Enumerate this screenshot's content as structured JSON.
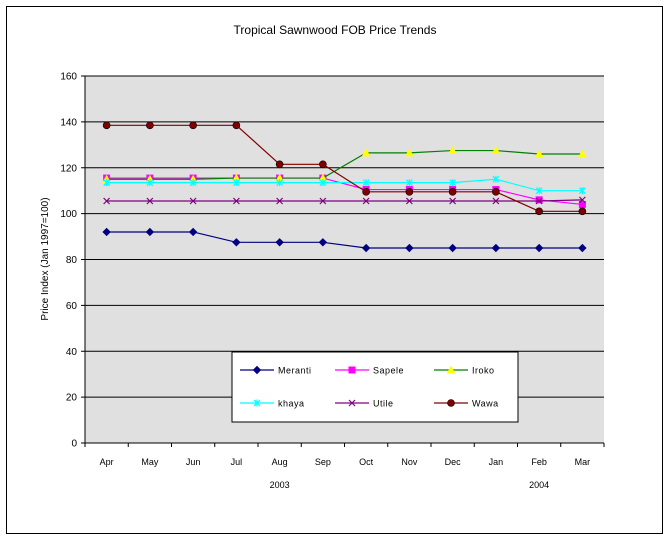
{
  "chart_data": {
    "type": "line",
    "title": "Tropical Sawnwood FOB Price Trends",
    "ylabel": "Price Index (Jan 1997=100)",
    "xlabel": "",
    "ylim": [
      0,
      160
    ],
    "yticks": [
      0,
      20,
      40,
      60,
      80,
      100,
      120,
      140,
      160
    ],
    "grid": true,
    "categories": [
      "Apr",
      "May",
      "Jun",
      "Jul",
      "Aug",
      "Sep",
      "Oct",
      "Nov",
      "Dec",
      "Jan",
      "Feb",
      "Mar"
    ],
    "year_labels": [
      {
        "label": "2003",
        "center_index": 4
      },
      {
        "label": "2004",
        "center_index": 10
      }
    ],
    "legend_position": "bottom-center (inside plot)",
    "series": [
      {
        "name": "Meranti",
        "color": "#000080",
        "marker": "diamond",
        "values": [
          92,
          92,
          92,
          87.5,
          87.5,
          87.5,
          85,
          85,
          85,
          85,
          85,
          85
        ]
      },
      {
        "name": "Sapele",
        "color": "#FF00FF",
        "marker": "square",
        "values": [
          115.5,
          115.5,
          115.5,
          115.5,
          115.5,
          115.5,
          110.5,
          110.5,
          110.5,
          110.5,
          106,
          104
        ]
      },
      {
        "name": "Iroko",
        "color": "#008000",
        "marker": "triangle",
        "markerColor": "#FFFF00",
        "values": [
          115,
          115,
          115,
          115.5,
          115.5,
          115.5,
          126.5,
          126.5,
          127.5,
          127.5,
          126,
          126
        ]
      },
      {
        "name": "khaya",
        "color": "#00FFFF",
        "marker": "star",
        "values": [
          113.5,
          113.5,
          113.5,
          113.5,
          113.5,
          113.5,
          113.5,
          113.5,
          113.5,
          115,
          110,
          110
        ]
      },
      {
        "name": "Utile",
        "color": "#800080",
        "marker": "x",
        "values": [
          105.5,
          105.5,
          105.5,
          105.5,
          105.5,
          105.5,
          105.5,
          105.5,
          105.5,
          105.5,
          105.5,
          106
        ]
      },
      {
        "name": "Wawa",
        "color": "#800000",
        "marker": "circle",
        "markerColor": "#800000",
        "values": [
          138.5,
          138.5,
          138.5,
          138.5,
          121.5,
          121.5,
          109.5,
          109.5,
          109.5,
          109.5,
          101,
          101
        ]
      }
    ]
  }
}
